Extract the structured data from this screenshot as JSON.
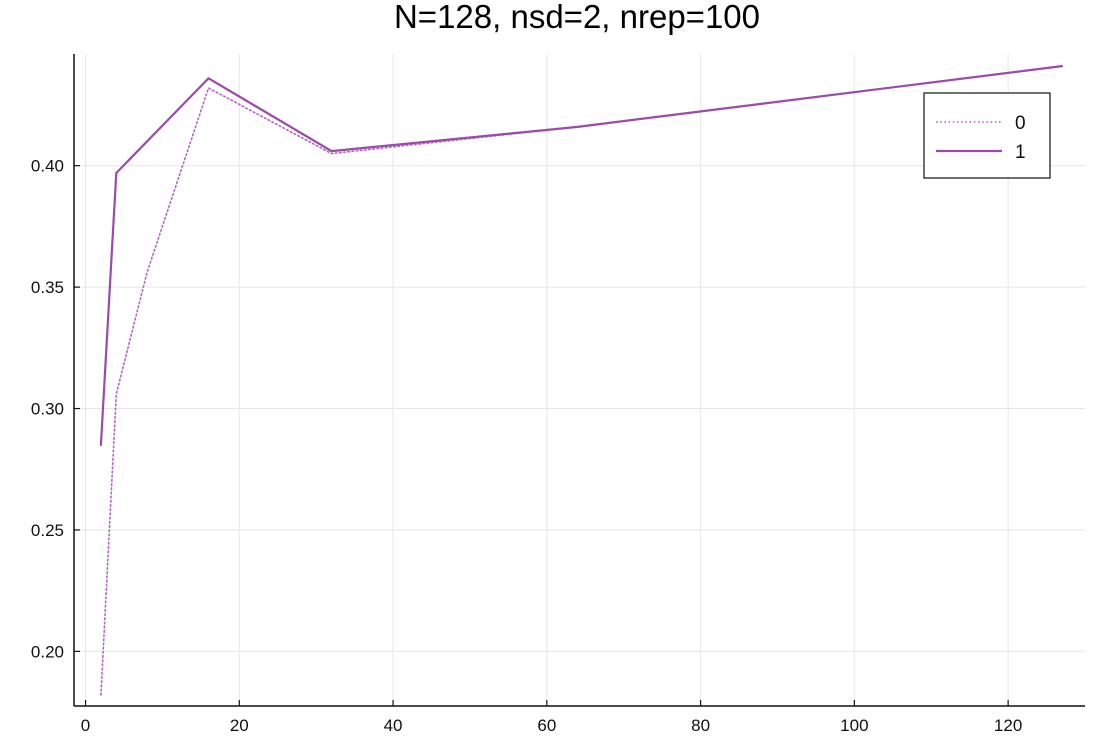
{
  "chart_data": {
    "type": "line",
    "title": "N=128, nsd=2, nrep=100",
    "xlabel": "",
    "ylabel": "",
    "xlim": [
      -1.5,
      130
    ],
    "ylim": [
      0.1775,
      0.446
    ],
    "xticks": [
      0,
      20,
      40,
      60,
      80,
      100,
      120
    ],
    "yticks": [
      0.2,
      0.25,
      0.3,
      0.35,
      0.4
    ],
    "xtick_labels": [
      "0",
      "20",
      "40",
      "60",
      "80",
      "100",
      "120"
    ],
    "ytick_labels": [
      "0.20",
      "0.25",
      "0.30",
      "0.35",
      "0.40"
    ],
    "grid": true,
    "legend_position": "top-right",
    "series": [
      {
        "name": "0",
        "style": "dotted",
        "color": "#b565c4",
        "x": [
          2,
          4,
          8,
          16,
          32,
          64,
          127
        ],
        "y": [
          0.182,
          0.306,
          0.356,
          0.432,
          0.405,
          0.416,
          0.441
        ]
      },
      {
        "name": "1",
        "style": "solid",
        "color": "#9b4aab",
        "x": [
          2,
          4,
          16,
          32,
          64,
          127
        ],
        "y": [
          0.285,
          0.397,
          0.436,
          0.406,
          0.416,
          0.441
        ]
      }
    ]
  }
}
